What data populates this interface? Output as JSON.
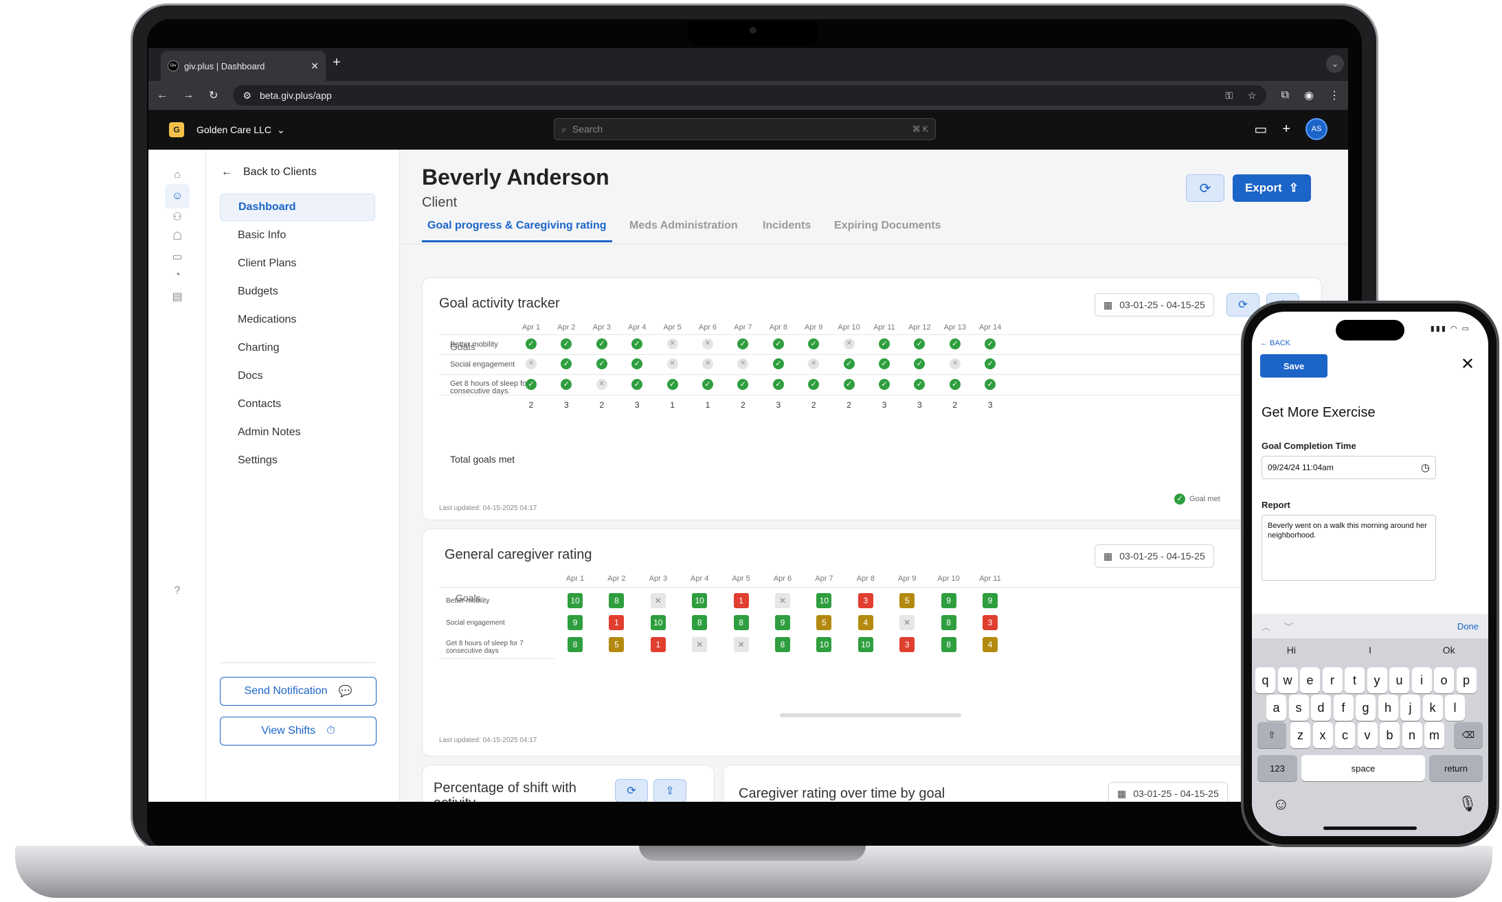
{
  "browser": {
    "tab_title": "giv.plus | Dashboard",
    "favicon": "Giv",
    "url": "beta.giv.plus/app"
  },
  "header": {
    "org_initial": "G",
    "org_name": "Golden Care LLC",
    "search_placeholder": "Search",
    "search_shortcut": "⌘ K",
    "avatar_initials": "AS"
  },
  "sidebar": {
    "back_label": "Back to Clients",
    "items": [
      "Dashboard",
      "Basic Info",
      "Client Plans",
      "Budgets",
      "Medications",
      "Charting",
      "Docs",
      "Contacts",
      "Admin Notes",
      "Settings"
    ],
    "send_notification": "Send Notification",
    "view_shifts": "View Shifts"
  },
  "client": {
    "name": "Beverly Anderson",
    "role": "Client",
    "export_label": "Export"
  },
  "tabs": [
    "Goal progress & Caregiving rating",
    "Meds Administration",
    "Incidents",
    "Expiring Documents"
  ],
  "goal_tracker": {
    "title": "Goal activity tracker",
    "date_range": "03-01-25 - 04-15-25",
    "goals_header": "Goals",
    "dates": [
      "Apr 1",
      "Apr 2",
      "Apr 3",
      "Apr 4",
      "Apr 5",
      "Apr 6",
      "Apr 7",
      "Apr 8",
      "Apr 9",
      "Apr 10",
      "Apr 11",
      "Apr 12",
      "Apr 13",
      "Apr 14"
    ],
    "goals": [
      {
        "name": "Better mobility",
        "met": [
          1,
          1,
          1,
          1,
          0,
          0,
          1,
          1,
          1,
          0,
          1,
          1,
          1,
          1
        ]
      },
      {
        "name": "Social engagement",
        "met": [
          0,
          1,
          1,
          1,
          0,
          0,
          0,
          1,
          0,
          1,
          1,
          1,
          0,
          1
        ]
      },
      {
        "name": "Get 8 hours of sleep for 7 consecutive days.",
        "met": [
          1,
          1,
          0,
          1,
          1,
          1,
          1,
          1,
          1,
          1,
          1,
          1,
          1,
          1
        ]
      }
    ],
    "total_label": "Total goals met",
    "totals": [
      "2",
      "3",
      "2",
      "3",
      "1",
      "1",
      "2",
      "3",
      "2",
      "2",
      "3",
      "3",
      "2",
      "3"
    ],
    "legend": "Goal met",
    "last_updated": "Last updated: 04-15-2025 04:17"
  },
  "caregiver_rating": {
    "title": "General caregiver rating",
    "date_range": "03-01-25 - 04-15-25",
    "goals_header": "Goals",
    "dates": [
      "Apr 1",
      "Apr 2",
      "Apr 3",
      "Apr 4",
      "Apr 5",
      "Apr 6",
      "Apr 7",
      "Apr 8",
      "Apr 9",
      "Apr 10",
      "Apr 11"
    ],
    "goals": [
      {
        "name": "Better mobility",
        "ratings": [
          "10",
          "8",
          "x",
          "10",
          "1",
          "x",
          "10",
          "3",
          "5",
          "9",
          "9"
        ]
      },
      {
        "name": "Social engagement",
        "ratings": [
          "9",
          "1",
          "10",
          "8",
          "8",
          "9",
          "5",
          "4",
          "x",
          "8",
          "3"
        ]
      },
      {
        "name": "Get 8 hours of sleep for 7 consecutive days",
        "ratings": [
          "8",
          "5",
          "1",
          "x",
          "x",
          "8",
          "10",
          "10",
          "3",
          "8",
          "4"
        ]
      }
    ],
    "last_updated": "Last updated: 04-15-2025 04:17"
  },
  "percentage_card": {
    "title": "Percentage of shift with activity"
  },
  "rating_over_time": {
    "title": "Caregiver rating over time by goal",
    "date_range": "03-01-25 - 04-15-25"
  },
  "phone": {
    "back": "← BACK",
    "save": "Save",
    "title": "Get More Exercise",
    "time_label": "Goal Completion Time",
    "time_value": "09/24/24  11:04am",
    "report_label": "Report",
    "report_value": "Beverly went on a walk this morning around her neighborhood.",
    "done": "Done",
    "suggestions": [
      "Hi",
      "I",
      "Ok"
    ],
    "row1": [
      "q",
      "w",
      "e",
      "r",
      "t",
      "y",
      "u",
      "i",
      "o",
      "p"
    ],
    "row2": [
      "a",
      "s",
      "d",
      "f",
      "g",
      "h",
      "j",
      "k",
      "l"
    ],
    "row3": [
      "z",
      "x",
      "c",
      "v",
      "b",
      "n",
      "m"
    ],
    "numbers": "123",
    "space": "space",
    "return": "return"
  },
  "colors": {
    "accent": "#1b64c8",
    "good": "#2e9e3e",
    "bad": "#e03e2f",
    "mid": "#b38a0f"
  }
}
